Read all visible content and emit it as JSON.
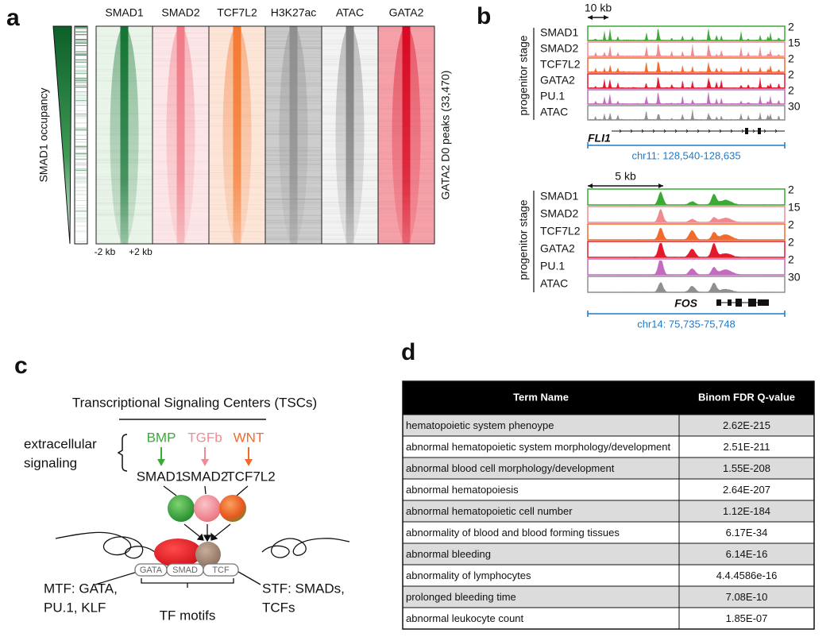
{
  "panels": {
    "a": {
      "label": "a",
      "columns": [
        "SMAD1",
        "SMAD2",
        "TCF7L2",
        "H3K27ac",
        "ATAC",
        "GATA2"
      ],
      "y_label": "SMAD1 occupancy",
      "right_label": "GATA2 D0 peaks (33,470)",
      "x_labels": [
        "-2 kb",
        "+2 kb"
      ]
    },
    "b": {
      "label": "b",
      "y_label": "progenitor stage",
      "loci": [
        {
          "scale": "10 kb",
          "gene": "FLI1",
          "region": "chr11: 128,540-128,635",
          "tracks": [
            {
              "name": "SMAD1",
              "max": 2
            },
            {
              "name": "SMAD2",
              "max": 15
            },
            {
              "name": "TCF7L2",
              "max": 2
            },
            {
              "name": "GATA2",
              "max": 2
            },
            {
              "name": "PU.1",
              "max": 2
            },
            {
              "name": "ATAC",
              "max": 30
            }
          ]
        },
        {
          "scale": "5 kb",
          "gene": "FOS",
          "region": "chr14: 75,735-75,748",
          "tracks": [
            {
              "name": "SMAD1",
              "max": 2
            },
            {
              "name": "SMAD2",
              "max": 15
            },
            {
              "name": "TCF7L2",
              "max": 2
            },
            {
              "name": "GATA2",
              "max": 2
            },
            {
              "name": "PU.1",
              "max": 2
            },
            {
              "name": "ATAC",
              "max": 30
            }
          ]
        }
      ]
    },
    "c": {
      "label": "c",
      "title": "Transcriptional Signaling Centers (TSCs)",
      "extracellular": [
        "extracellular",
        "signaling"
      ],
      "signals": [
        {
          "name": "BMP",
          "tf": "SMAD1"
        },
        {
          "name": "TGFb",
          "tf": "SMAD2"
        },
        {
          "name": "WNT",
          "tf": "TCF7L2"
        }
      ],
      "motifs": [
        "GATA",
        "SMAD",
        "TCF"
      ],
      "mtf": [
        "MTF: GATA,",
        "PU.1, KLF"
      ],
      "stf": [
        "STF: SMADs,",
        "TCFs"
      ],
      "motif_label": "TF motifs"
    },
    "d": {
      "label": "d",
      "header": [
        "Term Name",
        "Binom FDR Q-value"
      ],
      "rows": [
        [
          "hematopoietic system phenoype",
          "2.62E-215"
        ],
        [
          "abnormal hematopoietic system morphology/development",
          "2.51E-211"
        ],
        [
          "abnormal blood cell morphology/development",
          "1.55E-208"
        ],
        [
          "abnormal hematopoiesis",
          "2.64E-207"
        ],
        [
          "abnormal hematopoietic cell number",
          "1.12E-184"
        ],
        [
          "abnormality of blood and blood forming tissues",
          "6.17E-34"
        ],
        [
          "abnormal bleeding",
          "6.14E-16"
        ],
        [
          "abnormality of lymphocytes",
          "4.4.4586e-16"
        ],
        [
          "prolonged bleeding time",
          "7.08E-10"
        ],
        [
          "abnormal leukocyte count",
          "1.85E-07"
        ]
      ]
    }
  }
}
